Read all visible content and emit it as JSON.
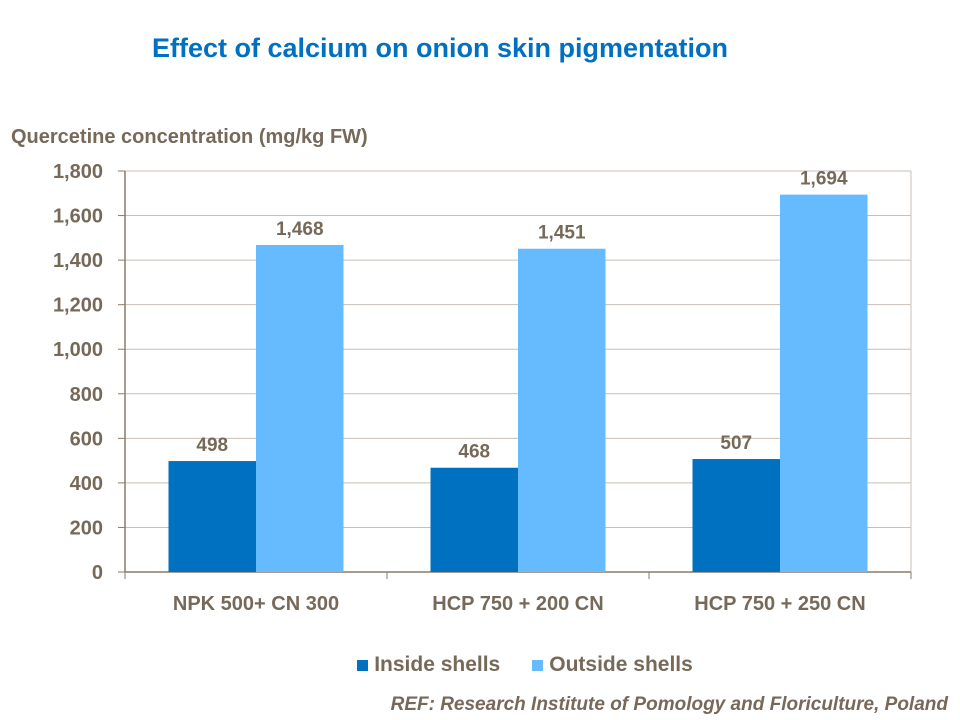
{
  "chart_data": {
    "type": "bar",
    "title": "Effect of calcium on onion skin pigmentation",
    "ylabel": "Quercetine concentration (mg/kg FW)",
    "xlabel": "",
    "categories": [
      "NPK 500+ CN 300",
      "HCP 750 + 200 CN",
      "HCP 750 + 250 CN"
    ],
    "series": [
      {
        "name": "Inside shells",
        "values": [
          498,
          468,
          507
        ],
        "labels": [
          "498",
          "468",
          "507"
        ],
        "color": "#0070C0"
      },
      {
        "name": "Outside shells",
        "values": [
          1468,
          1451,
          1694
        ],
        "labels": [
          "1,468",
          "1,451",
          "1,694"
        ],
        "color": "#66BBFF"
      }
    ],
    "ylim": [
      0,
      1800
    ],
    "yticks": [
      "0",
      "200",
      "400",
      "600",
      "800",
      "1,000",
      "1,200",
      "1,400",
      "1,600",
      "1,800"
    ],
    "grid": true,
    "legend": "bottom"
  },
  "reference": "REF: Research Institute of Pomology and Floriculture, Poland"
}
